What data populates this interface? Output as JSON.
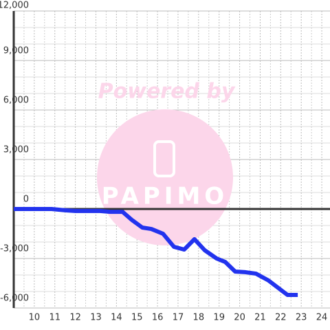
{
  "chart_data": {
    "type": "line",
    "x": [
      9,
      10.84,
      11.5,
      12.0,
      13.2,
      13.7,
      14.3,
      14.76,
      15.26,
      15.7,
      16.27,
      16.8,
      17.3,
      17.8,
      18.3,
      18.88,
      19.3,
      19.78,
      20.28,
      20.8,
      21.4,
      22.33,
      22.83
    ],
    "series": [
      {
        "color": "#2233ee",
        "values": [
          0,
          0,
          -80,
          -120,
          -120,
          -170,
          -170,
          -670,
          -1125,
          -1210,
          -1500,
          -2290,
          -2460,
          -1830,
          -2500,
          -3000,
          -3210,
          -3790,
          -3830,
          -3920,
          -4330,
          -5210,
          -5210
        ]
      }
    ],
    "xlim": [
      9,
      24.4
    ],
    "xticks": [
      10,
      11,
      12,
      13,
      14,
      15,
      16,
      17,
      18,
      19,
      20,
      21,
      22,
      23,
      24
    ],
    "xminorticks": [
      9.5,
      10.5,
      11.5,
      12.5,
      13.5,
      14.5,
      15.5,
      16.5,
      17.5,
      18.5,
      19.5,
      20.5,
      21.5,
      22.5,
      23.5
    ],
    "ylim": [
      -6000,
      12000
    ],
    "yticks": [
      {
        "value": -6000,
        "label": "-6,000"
      },
      {
        "value": -3000,
        "label": "-3,000"
      },
      0,
      {
        "value": 3000,
        "label": "3,000"
      },
      {
        "value": 6000,
        "label": "6,000"
      },
      {
        "value": 9000,
        "label": "9,000"
      },
      {
        "value": 12000,
        "label": "12,000"
      }
    ],
    "yminorticks": [
      -5000,
      -4000,
      -2000,
      -1000,
      1000,
      2000,
      4000,
      5000,
      7000,
      8000,
      10000,
      11000
    ],
    "grid": true,
    "watermark": "Powered by",
    "watermark_logo": "PAPIMO"
  }
}
